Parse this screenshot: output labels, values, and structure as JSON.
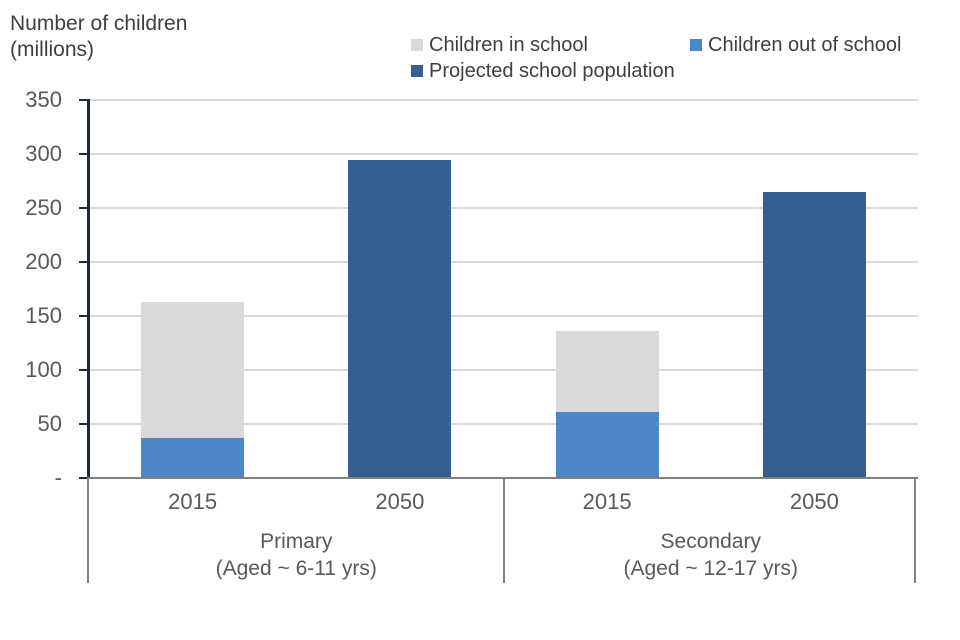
{
  "title": {
    "line1": "Number of children",
    "line2": "(millions)"
  },
  "legend": [
    {
      "label": "Children in school",
      "color": "#d9d9d9"
    },
    {
      "label": "Children out of school",
      "color": "#4e86c8"
    },
    {
      "label": "Projected school population",
      "color": "#365f91"
    }
  ],
  "chart_data": {
    "type": "bar",
    "stacked": true,
    "title": "Number of children (millions)",
    "ylabel": "Number of children (millions)",
    "ylim": [
      0,
      350
    ],
    "ytick_step": 50,
    "ytick_labels": [
      "-",
      "50",
      "100",
      "150",
      "200",
      "250",
      "300",
      "350"
    ],
    "grid": true,
    "legend_position": "top",
    "series_colors": {
      "Children in school": "#d9d9d9",
      "Children out of school": "#4e86c8",
      "Projected school population": "#365f91"
    },
    "groups": [
      {
        "label": "Primary",
        "sublabel": "(Aged ~ 6-11 yrs)",
        "bars": [
          {
            "year": "2015",
            "total": 163,
            "segments": [
              {
                "series": "Children out of school",
                "value": 37
              },
              {
                "series": "Children in school",
                "value": 126
              }
            ]
          },
          {
            "year": "2050",
            "total": 294,
            "segments": [
              {
                "series": "Projected school population",
                "value": 294
              }
            ]
          }
        ]
      },
      {
        "label": "Secondary",
        "sublabel": "(Aged ~ 12-17 yrs)",
        "bars": [
          {
            "year": "2015",
            "total": 136,
            "segments": [
              {
                "series": "Children out of school",
                "value": 61
              },
              {
                "series": "Children in school",
                "value": 75
              }
            ]
          },
          {
            "year": "2050",
            "total": 265,
            "segments": [
              {
                "series": "Projected school population",
                "value": 265
              }
            ]
          }
        ]
      }
    ]
  },
  "colors": {
    "axis_line": "#1c2b3a",
    "table_line": "#808080",
    "gridline": "#d9d9d9",
    "label_text": "#595959",
    "title_text": "#3f3f3f"
  }
}
